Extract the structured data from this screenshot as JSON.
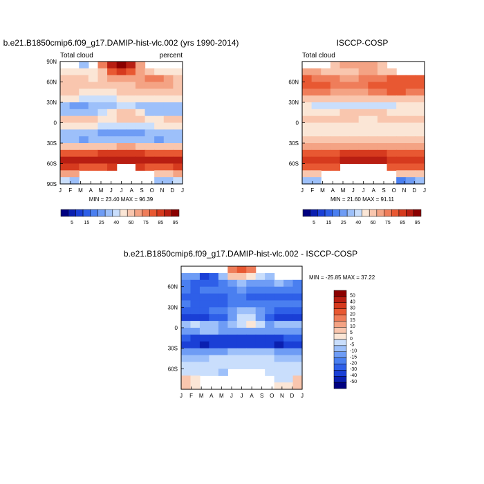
{
  "chart_data": [
    {
      "type": "heatmap",
      "id": "model",
      "title": "b.e21.B1850cmip6.f09_g17.DAMIP-hist-vlc.002 (yrs 1990-2014)",
      "left_label": "Total cloud",
      "right_label": "percent",
      "stats": "MIN =  23.40 MAX =  96.39",
      "x_ticks": [
        "J",
        "F",
        "M",
        "A",
        "M",
        "J",
        "J",
        "A",
        "S",
        "O",
        "N",
        "D",
        "J"
      ],
      "y_ticks": [
        "90N",
        "60N",
        "30N",
        "0",
        "30S",
        "60S",
        "90S"
      ],
      "y_tick_values": [
        90,
        60,
        30,
        0,
        -30,
        -60,
        -90
      ],
      "ylim": [
        -90,
        90
      ],
      "latitudes": [
        85,
        75,
        65,
        55,
        45,
        35,
        25,
        15,
        5,
        -5,
        -15,
        -25,
        -35,
        -45,
        -55,
        -65,
        -75,
        -85
      ],
      "months": [
        "Jan",
        "Feb",
        "Mar",
        "Apr",
        "May",
        "Jun",
        "Jul",
        "Aug",
        "Sep",
        "Oct",
        "Nov",
        "Dec",
        "Jan"
      ],
      "values": [
        [
          null,
          null,
          37,
          null,
          77,
          92,
          96,
          92,
          72,
          null,
          null,
          null,
          null
        ],
        [
          58,
          52,
          50,
          55,
          68,
          82,
          85,
          80,
          70,
          66,
          58,
          55,
          58
        ],
        [
          65,
          62,
          60,
          58,
          62,
          70,
          72,
          70,
          72,
          76,
          78,
          72,
          65
        ],
        [
          68,
          66,
          65,
          63,
          62,
          65,
          68,
          68,
          70,
          72,
          70,
          70,
          68
        ],
        [
          62,
          60,
          58,
          56,
          56,
          58,
          60,
          60,
          62,
          64,
          62,
          62,
          62
        ],
        [
          52,
          50,
          48,
          46,
          46,
          48,
          50,
          50,
          52,
          54,
          52,
          52,
          52
        ],
        [
          30,
          28,
          27,
          30,
          33,
          38,
          42,
          42,
          38,
          34,
          31,
          30,
          30
        ],
        [
          30,
          32,
          34,
          36,
          42,
          55,
          62,
          62,
          50,
          38,
          34,
          32,
          30
        ],
        [
          60,
          62,
          62,
          60,
          56,
          58,
          62,
          64,
          60,
          56,
          58,
          60,
          60
        ],
        [
          50,
          52,
          54,
          56,
          48,
          44,
          44,
          44,
          46,
          48,
          50,
          50,
          50
        ],
        [
          38,
          36,
          32,
          30,
          28,
          26,
          26,
          26,
          28,
          32,
          36,
          38,
          38
        ],
        [
          32,
          30,
          28,
          30,
          32,
          34,
          34,
          34,
          32,
          30,
          28,
          30,
          32
        ],
        [
          62,
          60,
          60,
          62,
          66,
          68,
          70,
          70,
          68,
          66,
          64,
          62,
          62
        ],
        [
          82,
          82,
          82,
          84,
          86,
          88,
          88,
          88,
          86,
          84,
          82,
          82,
          82
        ],
        [
          90,
          90,
          90,
          90,
          91,
          92,
          92,
          92,
          91,
          90,
          90,
          90,
          90
        ],
        [
          86,
          85,
          84,
          84,
          84,
          86,
          null,
          null,
          86,
          84,
          84,
          84,
          86
        ],
        [
          72,
          70,
          null,
          null,
          null,
          null,
          null,
          null,
          null,
          null,
          66,
          68,
          72
        ],
        [
          40,
          38,
          null,
          null,
          null,
          null,
          null,
          null,
          null,
          null,
          30,
          34,
          40
        ]
      ]
    },
    {
      "type": "heatmap",
      "id": "obs",
      "title": "ISCCP-COSP",
      "left_label": "Total cloud",
      "right_label": "",
      "stats": "MIN =  21.60 MAX =  91.11",
      "x_ticks": [
        "J",
        "F",
        "M",
        "A",
        "M",
        "J",
        "J",
        "A",
        "S",
        "O",
        "N",
        "D",
        "J"
      ],
      "y_ticks": [
        "60N",
        "30N",
        "0",
        "30S",
        "60S"
      ],
      "y_tick_values": [
        60,
        30,
        0,
        -30,
        -60
      ],
      "ylim": [
        -90,
        90
      ],
      "latitudes": [
        85,
        75,
        65,
        55,
        45,
        35,
        25,
        15,
        5,
        -5,
        -15,
        -25,
        -35,
        -45,
        -55,
        -65,
        -75,
        -85
      ],
      "months": [
        "Jan",
        "Feb",
        "Mar",
        "Apr",
        "May",
        "Jun",
        "Jul",
        "Aug",
        "Sep",
        "Oct",
        "Nov",
        "Dec",
        "Jan"
      ],
      "values": [
        [
          null,
          null,
          null,
          66,
          70,
          70,
          72,
          70,
          68,
          null,
          null,
          null,
          null
        ],
        [
          72,
          70,
          68,
          66,
          66,
          68,
          70,
          70,
          68,
          68,
          null,
          null,
          null
        ],
        [
          80,
          78,
          76,
          75,
          74,
          74,
          75,
          76,
          78,
          80,
          80,
          80,
          80
        ],
        [
          82,
          82,
          80,
          78,
          76,
          76,
          78,
          80,
          82,
          84,
          84,
          82,
          82
        ],
        [
          78,
          78,
          76,
          74,
          72,
          72,
          74,
          76,
          78,
          80,
          80,
          78,
          78
        ],
        [
          66,
          66,
          64,
          62,
          62,
          62,
          62,
          62,
          64,
          66,
          66,
          66,
          66
        ],
        [
          50,
          48,
          46,
          44,
          44,
          44,
          44,
          44,
          46,
          48,
          50,
          50,
          50
        ],
        [
          56,
          56,
          58,
          58,
          60,
          60,
          62,
          62,
          60,
          58,
          56,
          56,
          56
        ],
        [
          62,
          62,
          64,
          64,
          62,
          60,
          58,
          58,
          60,
          62,
          62,
          62,
          62
        ],
        [
          58,
          58,
          58,
          58,
          56,
          54,
          54,
          54,
          56,
          58,
          58,
          58,
          58
        ],
        [
          58,
          58,
          56,
          56,
          56,
          58,
          58,
          58,
          58,
          58,
          58,
          58,
          58
        ],
        [
          60,
          60,
          60,
          60,
          62,
          62,
          62,
          62,
          62,
          60,
          60,
          60,
          60
        ],
        [
          70,
          70,
          70,
          70,
          72,
          72,
          74,
          74,
          72,
          70,
          70,
          70,
          70
        ],
        [
          84,
          84,
          84,
          84,
          86,
          86,
          86,
          86,
          86,
          84,
          84,
          84,
          84
        ],
        [
          88,
          88,
          88,
          88,
          90,
          90,
          90,
          90,
          90,
          88,
          88,
          88,
          88
        ],
        [
          84,
          84,
          84,
          84,
          null,
          null,
          null,
          null,
          null,
          84,
          84,
          84,
          84
        ],
        [
          60,
          62,
          null,
          null,
          null,
          null,
          null,
          null,
          null,
          null,
          66,
          64,
          60
        ],
        [
          30,
          32,
          null,
          null,
          null,
          null,
          null,
          null,
          null,
          null,
          24,
          26,
          30
        ]
      ]
    },
    {
      "type": "heatmap",
      "id": "diff",
      "title": "b.e21.B1850cmip6.f09_g17.DAMIP-hist-vlc.002 - ISCCP-COSP",
      "stats": "MIN = -25.85 MAX =  37.22",
      "x_ticks": [
        "J",
        "F",
        "M",
        "A",
        "M",
        "J",
        "J",
        "A",
        "S",
        "O",
        "N",
        "D",
        "J"
      ],
      "y_ticks": [
        "60N",
        "30N",
        "0",
        "30S",
        "60S"
      ],
      "y_tick_values": [
        60,
        30,
        0,
        -30,
        -60
      ],
      "ylim": [
        -90,
        90
      ],
      "latitudes": [
        85,
        75,
        65,
        55,
        45,
        35,
        25,
        15,
        5,
        -5,
        -15,
        -25,
        -35,
        -45,
        -55,
        -65,
        -75,
        -85
      ],
      "months": [
        "Jan",
        "Feb",
        "Mar",
        "Apr",
        "May",
        "Jun",
        "Jul",
        "Aug",
        "Sep",
        "Oct",
        "Nov",
        "Dec",
        "Jan"
      ],
      "values": [
        [
          null,
          null,
          null,
          null,
          null,
          26,
          32,
          26,
          null,
          null,
          null,
          null,
          null
        ],
        [
          -8,
          -10,
          -22,
          -18,
          -4,
          10,
          12,
          8,
          2,
          -2,
          null,
          null,
          null
        ],
        [
          -14,
          -16,
          -16,
          -16,
          -12,
          -6,
          -4,
          -6,
          -8,
          -6,
          -4,
          -8,
          -14
        ],
        [
          -14,
          -16,
          -15,
          -14,
          -13,
          -11,
          -10,
          -12,
          -12,
          -13,
          -14,
          -12,
          -14
        ],
        [
          -16,
          -18,
          -18,
          -18,
          -16,
          -14,
          -14,
          -16,
          -16,
          -16,
          -18,
          -16,
          -16
        ],
        [
          -14,
          -16,
          -16,
          -16,
          -16,
          -14,
          -12,
          -12,
          -12,
          -12,
          -14,
          -14,
          -14
        ],
        [
          -18,
          -18,
          -18,
          -14,
          -11,
          -6,
          -2,
          -2,
          -8,
          -14,
          -18,
          -18,
          -18
        ],
        [
          -22,
          -22,
          -22,
          -20,
          -18,
          -8,
          0,
          0,
          -8,
          -18,
          -22,
          -22,
          -22
        ],
        [
          -2,
          0,
          -2,
          -4,
          -6,
          -2,
          4,
          6,
          0,
          -6,
          -4,
          -2,
          -2
        ],
        [
          -8,
          -6,
          -4,
          -2,
          -8,
          -10,
          -10,
          -10,
          -10,
          -10,
          -8,
          -8,
          -8
        ],
        [
          -20,
          -22,
          -24,
          -26,
          -28,
          -30,
          -30,
          -30,
          -28,
          -26,
          -22,
          -20,
          -20
        ],
        [
          -28,
          -30,
          -32,
          -30,
          -30,
          -28,
          -28,
          -28,
          -30,
          -30,
          -32,
          -30,
          -28
        ],
        [
          -8,
          -10,
          -10,
          -8,
          -6,
          -4,
          -4,
          -4,
          -4,
          -4,
          -6,
          -8,
          -8
        ],
        [
          -2,
          -2,
          -2,
          0,
          0,
          2,
          2,
          2,
          0,
          0,
          -2,
          -2,
          -2
        ],
        [
          2,
          2,
          2,
          2,
          1,
          2,
          2,
          2,
          1,
          2,
          2,
          2,
          2
        ],
        [
          2,
          1,
          0,
          0,
          -1,
          null,
          null,
          null,
          null,
          0,
          0,
          0,
          2
        ],
        [
          12,
          8,
          null,
          null,
          null,
          null,
          null,
          null,
          null,
          null,
          0,
          4,
          12
        ],
        [
          10,
          6,
          null,
          null,
          null,
          null,
          null,
          null,
          null,
          null,
          6,
          8,
          10
        ]
      ]
    }
  ],
  "colorbar_abs": {
    "labels": [
      "5",
      "15",
      "25",
      "40",
      "60",
      "75",
      "85",
      "95"
    ],
    "levels": [
      0,
      5,
      10,
      15,
      20,
      25,
      30,
      40,
      50,
      60,
      70,
      75,
      80,
      85,
      90,
      95
    ],
    "colors": [
      "#000080",
      "#0a1fb0",
      "#1a3fd6",
      "#2e5fe8",
      "#4a7ff0",
      "#6e9cf5",
      "#9dc0fa",
      "#c9defc",
      "#fbe6d6",
      "#f9c6ae",
      "#f4a384",
      "#ef7d5a",
      "#e85832",
      "#d63a1e",
      "#b81e12",
      "#8b0000"
    ]
  },
  "colorbar_diff": {
    "labels": [
      "50",
      "40",
      "30",
      "20",
      "15",
      "10",
      "5",
      "0",
      "-5",
      "-10",
      "-15",
      "-20",
      "-30",
      "-40",
      "-50"
    ],
    "levels": [
      -50,
      -40,
      -30,
      -20,
      -15,
      -10,
      -5,
      0,
      5,
      10,
      15,
      20,
      30,
      40,
      50
    ],
    "colors": [
      "#000080",
      "#0a1fb0",
      "#1a3fd6",
      "#2e5fe8",
      "#4a7ff0",
      "#6e9cf5",
      "#9dc0fa",
      "#c9defc",
      "#fbe6d6",
      "#f9c6ae",
      "#f4a384",
      "#ef7d5a",
      "#e85832",
      "#d63a1e",
      "#b81e12",
      "#8b0000"
    ]
  }
}
